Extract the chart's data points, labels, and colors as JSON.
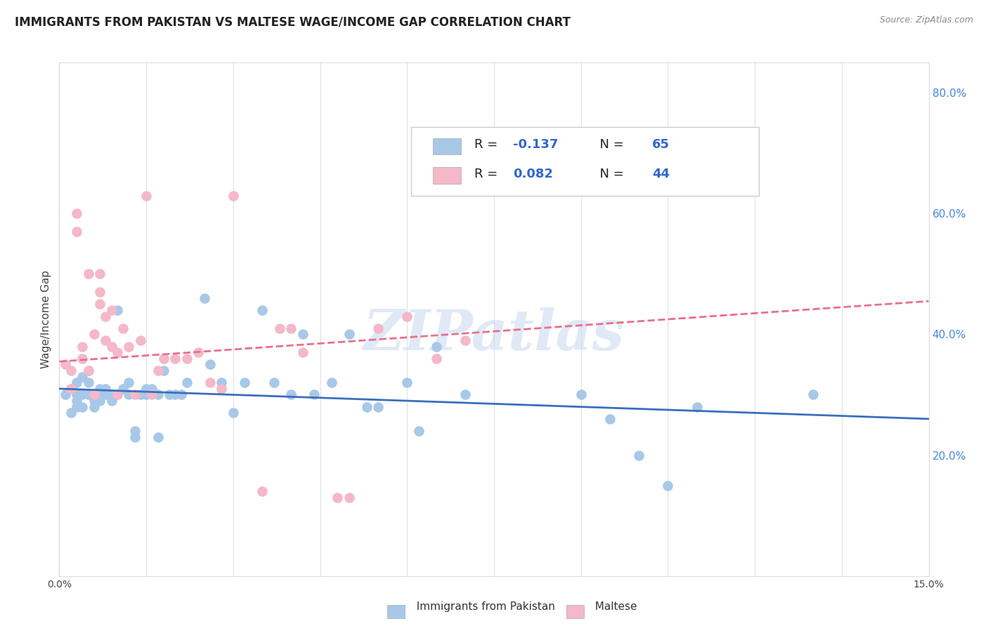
{
  "title": "IMMIGRANTS FROM PAKISTAN VS MALTESE WAGE/INCOME GAP CORRELATION CHART",
  "source": "Source: ZipAtlas.com",
  "ylabel": "Wage/Income Gap",
  "xmin": 0.0,
  "xmax": 0.15,
  "ymin": 0.0,
  "ymax": 0.85,
  "right_yticks": [
    0.2,
    0.4,
    0.6,
    0.8
  ],
  "right_ytick_labels": [
    "20.0%",
    "40.0%",
    "60.0%",
    "80.0%"
  ],
  "pakistan_R": "-0.137",
  "pakistan_N": "65",
  "maltese_R": "0.082",
  "maltese_N": "44",
  "pakistan_color": "#a8c8e8",
  "pakistan_line_color": "#3a6fbd",
  "maltese_color": "#f4b8c8",
  "maltese_line_color": "#e8708a",
  "watermark": "ZIPatlas",
  "pakistan_scatter_x": [
    0.001,
    0.002,
    0.002,
    0.003,
    0.003,
    0.003,
    0.003,
    0.004,
    0.004,
    0.004,
    0.005,
    0.005,
    0.005,
    0.006,
    0.006,
    0.006,
    0.007,
    0.007,
    0.007,
    0.008,
    0.008,
    0.009,
    0.009,
    0.01,
    0.01,
    0.011,
    0.012,
    0.012,
    0.013,
    0.013,
    0.014,
    0.015,
    0.015,
    0.016,
    0.017,
    0.017,
    0.018,
    0.019,
    0.02,
    0.021,
    0.022,
    0.025,
    0.026,
    0.028,
    0.03,
    0.032,
    0.035,
    0.037,
    0.04,
    0.042,
    0.044,
    0.047,
    0.05,
    0.053,
    0.055,
    0.06,
    0.062,
    0.065,
    0.07,
    0.09,
    0.095,
    0.1,
    0.105,
    0.11,
    0.13
  ],
  "pakistan_scatter_y": [
    0.3,
    0.31,
    0.27,
    0.3,
    0.29,
    0.28,
    0.32,
    0.3,
    0.28,
    0.33,
    0.3,
    0.32,
    0.34,
    0.29,
    0.3,
    0.28,
    0.31,
    0.3,
    0.29,
    0.3,
    0.31,
    0.3,
    0.29,
    0.44,
    0.3,
    0.31,
    0.32,
    0.3,
    0.24,
    0.23,
    0.3,
    0.31,
    0.3,
    0.31,
    0.3,
    0.23,
    0.34,
    0.3,
    0.3,
    0.3,
    0.32,
    0.46,
    0.35,
    0.32,
    0.27,
    0.32,
    0.44,
    0.32,
    0.3,
    0.4,
    0.3,
    0.32,
    0.4,
    0.28,
    0.28,
    0.32,
    0.24,
    0.38,
    0.3,
    0.3,
    0.26,
    0.2,
    0.15,
    0.28,
    0.3
  ],
  "maltese_scatter_x": [
    0.001,
    0.002,
    0.002,
    0.003,
    0.003,
    0.004,
    0.004,
    0.005,
    0.005,
    0.006,
    0.006,
    0.007,
    0.007,
    0.007,
    0.008,
    0.008,
    0.009,
    0.009,
    0.01,
    0.01,
    0.011,
    0.012,
    0.013,
    0.014,
    0.015,
    0.016,
    0.017,
    0.018,
    0.02,
    0.022,
    0.024,
    0.026,
    0.028,
    0.03,
    0.035,
    0.038,
    0.04,
    0.042,
    0.048,
    0.05,
    0.055,
    0.06,
    0.065,
    0.07
  ],
  "maltese_scatter_y": [
    0.35,
    0.34,
    0.31,
    0.6,
    0.57,
    0.38,
    0.36,
    0.5,
    0.34,
    0.3,
    0.4,
    0.5,
    0.47,
    0.45,
    0.39,
    0.43,
    0.44,
    0.38,
    0.37,
    0.3,
    0.41,
    0.38,
    0.3,
    0.39,
    0.63,
    0.3,
    0.34,
    0.36,
    0.36,
    0.36,
    0.37,
    0.32,
    0.31,
    0.63,
    0.14,
    0.41,
    0.41,
    0.37,
    0.13,
    0.13,
    0.41,
    0.43,
    0.36,
    0.39
  ],
  "pakistan_line_x": [
    0.0,
    0.15
  ],
  "pakistan_line_y": [
    0.31,
    0.26
  ],
  "maltese_line_x": [
    0.0,
    0.15
  ],
  "maltese_line_y": [
    0.355,
    0.455
  ],
  "background_color": "#ffffff",
  "grid_color": "#e0e0e0",
  "title_fontsize": 12,
  "axis_label_fontsize": 11,
  "tick_fontsize": 10,
  "legend_fontsize": 13
}
